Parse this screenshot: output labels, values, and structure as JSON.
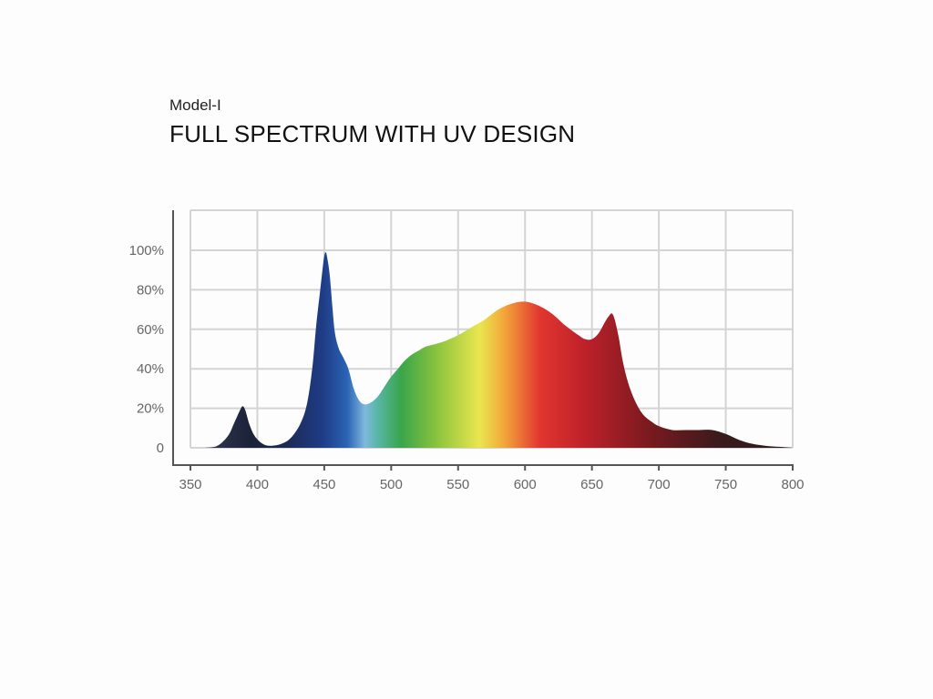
{
  "header": {
    "model": "Model-I",
    "title": "FULL SPECTRUM WITH UV DESIGN"
  },
  "chart_data": {
    "type": "area",
    "title": "FULL SPECTRUM WITH UV DESIGN",
    "subtitle": "Model-I",
    "xlabel": "",
    "ylabel": "",
    "xlim": [
      350,
      800
    ],
    "ylim": [
      0,
      110
    ],
    "x_ticks": [
      350,
      400,
      450,
      500,
      550,
      600,
      650,
      700,
      750,
      800
    ],
    "x_tick_labels": [
      "350",
      "400",
      "450",
      "500",
      "550",
      "600",
      "650",
      "700",
      "750",
      "800"
    ],
    "y_ticks": [
      0,
      20,
      40,
      60,
      80,
      100
    ],
    "y_tick_labels": [
      "0",
      "20%",
      "40%",
      "60%",
      "80%",
      "100%"
    ],
    "grid": true,
    "fill": "wavelength color gradient",
    "series": [
      {
        "x": [
          360,
          370,
          378,
          383,
          387,
          389,
          391,
          394,
          398,
          404,
          410,
          418,
          425,
          432,
          437,
          441,
          444,
          447,
          449,
          450,
          451,
          452,
          454,
          456,
          458,
          461,
          464,
          468,
          472,
          476,
          480,
          485,
          490,
          495,
          500,
          505,
          510,
          515,
          520,
          525,
          530,
          540,
          550,
          560,
          570,
          580,
          590,
          600,
          610,
          620,
          630,
          640,
          645,
          650,
          655,
          660,
          663,
          665,
          667,
          670,
          673,
          677,
          682,
          688,
          695,
          700,
          710,
          720,
          730,
          740,
          750,
          760,
          770,
          780,
          790,
          800
        ],
        "values": [
          0,
          1,
          6,
          13,
          19,
          21,
          19,
          12,
          6,
          2,
          1,
          2,
          5,
          12,
          22,
          40,
          62,
          80,
          92,
          97,
          99,
          97,
          88,
          72,
          58,
          50,
          46,
          40,
          30,
          24,
          22,
          23,
          26,
          31,
          36,
          40,
          44,
          47,
          49,
          51,
          52,
          54,
          57,
          61,
          65,
          70,
          73,
          74,
          72,
          68,
          62,
          57,
          55,
          55,
          58,
          64,
          67,
          68,
          65,
          56,
          44,
          33,
          24,
          17,
          13,
          11,
          9,
          9,
          9,
          9,
          7,
          4,
          2,
          1,
          0.5,
          0
        ]
      }
    ]
  }
}
